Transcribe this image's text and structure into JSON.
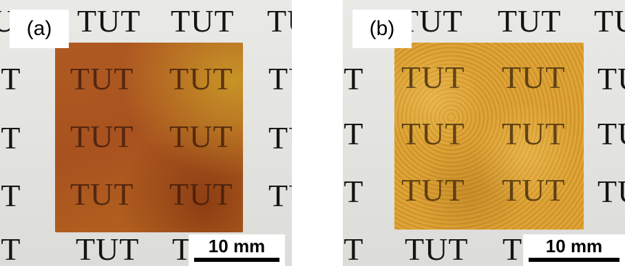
{
  "panels": [
    {
      "label": "(a)",
      "scale_bar": "10 mm"
    },
    {
      "label": "(b)",
      "scale_bar": "10 mm"
    }
  ],
  "background_text": "TUT",
  "film_text": "TUT"
}
